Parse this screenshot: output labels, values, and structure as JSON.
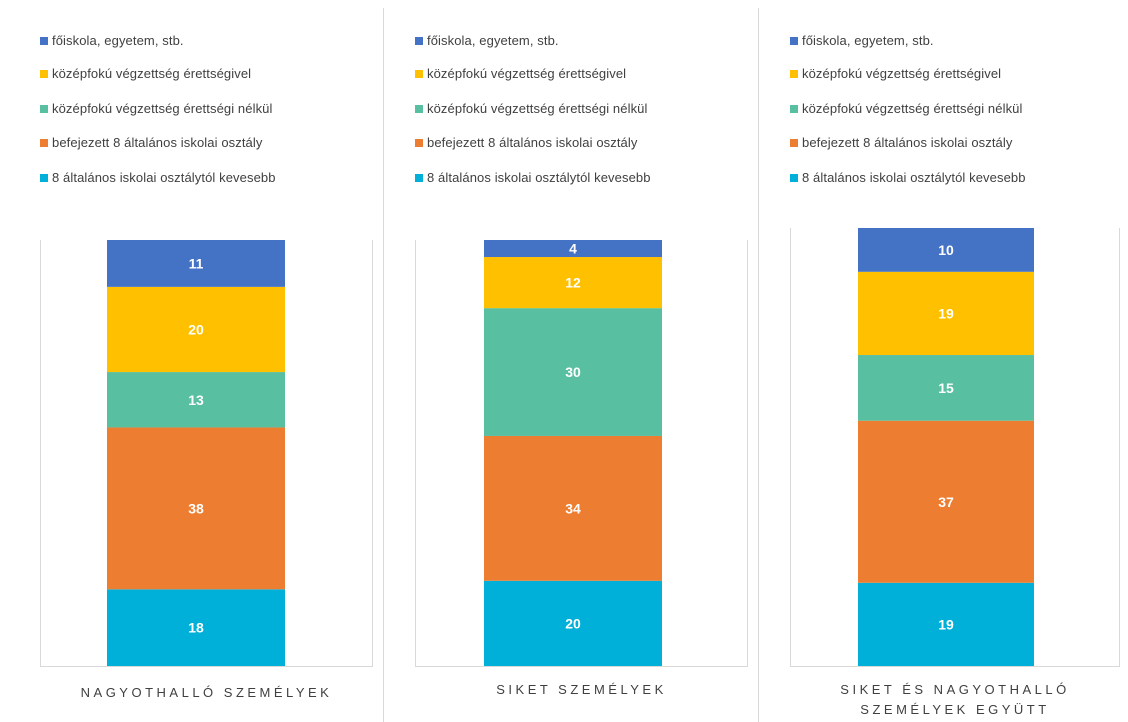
{
  "chart_data": {
    "type": "bar",
    "stacked": true,
    "legend_placement": "top",
    "grid": false,
    "series": [
      {
        "name": "8 általános iskolai osztálytól kevesebb",
        "color": "#00B0D8"
      },
      {
        "name": "befejezett 8 általános iskolai osztály",
        "color": "#ED7D31"
      },
      {
        "name": "középfokú  végzettség érettségi nélkül",
        "color": "#58BFA0"
      },
      {
        "name": "középfokú végzettség érettségivel",
        "color": "#FFC000"
      },
      {
        "name": "főiskola, egyetem, stb.",
        "color": "#4472C4"
      }
    ],
    "charts": [
      {
        "category": "NAGYOTHALLÓ SZEMÉLYEK",
        "values": [
          18,
          38,
          13,
          20,
          11
        ]
      },
      {
        "category": "SIKET SZEMÉLYEK",
        "values": [
          20,
          34,
          30,
          12,
          4
        ]
      },
      {
        "category": "SIKET ÉS NAGYOTHALLÓ SZEMÉLYEK EGYÜTT",
        "values": [
          19,
          37,
          15,
          19,
          10
        ]
      }
    ]
  }
}
